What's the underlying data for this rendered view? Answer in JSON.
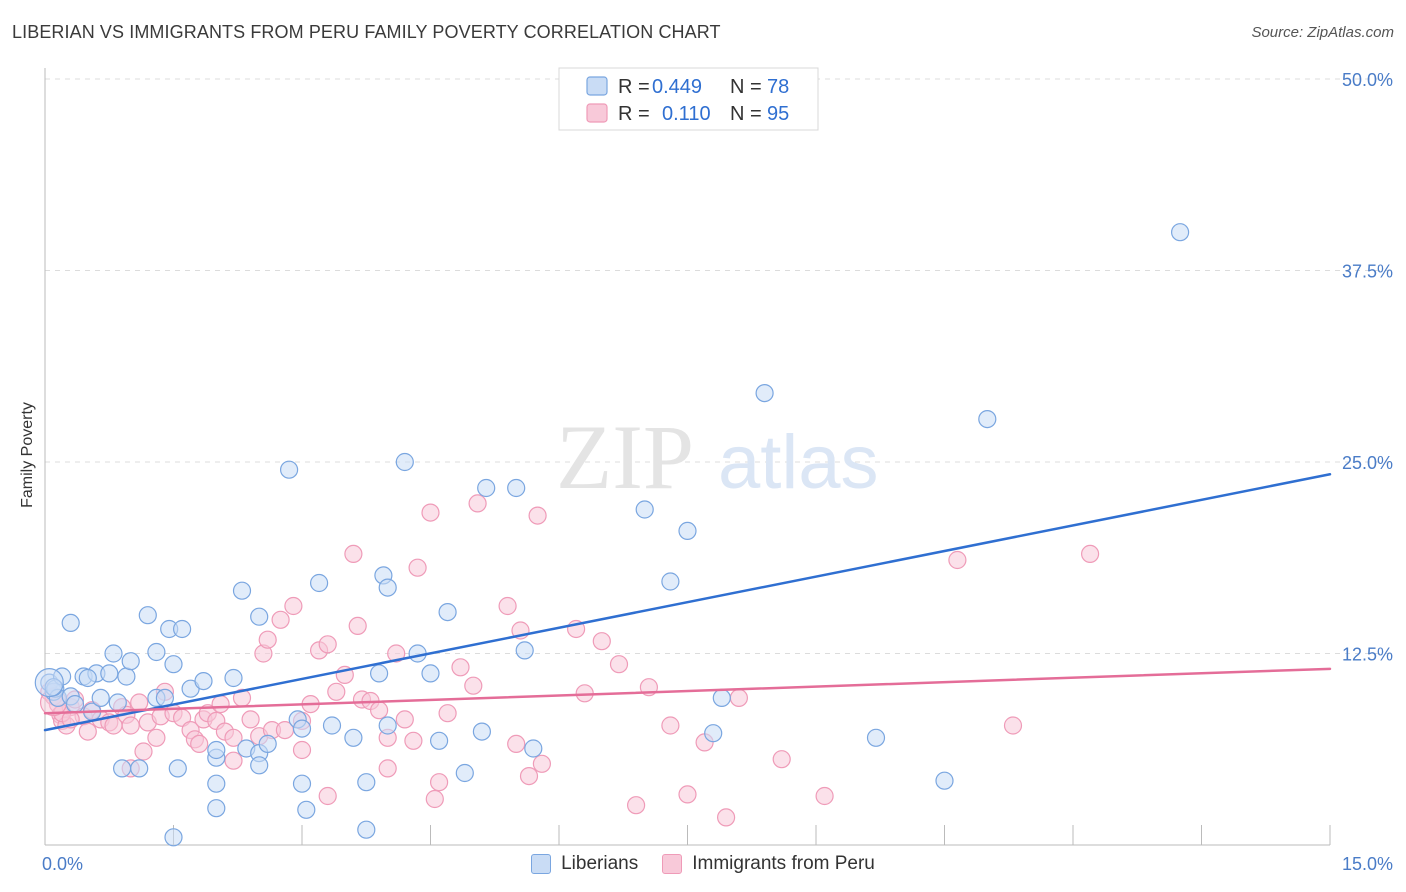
{
  "header": {
    "title": "LIBERIAN VS IMMIGRANTS FROM PERU FAMILY POVERTY CORRELATION CHART",
    "source": "Source: ZipAtlas.com"
  },
  "watermark": {
    "zip": "ZIP",
    "atlas": "atlas"
  },
  "legend": {
    "rows": [
      {
        "r_label": "R =",
        "r_value": "0.449",
        "n_label": "N =",
        "n_value": "78"
      },
      {
        "r_label": "R =",
        "r_value": "0.110",
        "n_label": "N =",
        "n_value": "95"
      }
    ]
  },
  "bottom_legend": {
    "series1": "Liberians",
    "series2": "Immigrants from Peru"
  },
  "chart_data": {
    "type": "scatter",
    "title": "LIBERIAN VS IMMIGRANTS FROM PERU FAMILY POVERTY CORRELATION CHART",
    "xlabel": "",
    "ylabel": "Family Poverty",
    "xlim": [
      0,
      15
    ],
    "ylim": [
      0,
      50
    ],
    "x_tick_labels": [
      "0.0%",
      "15.0%"
    ],
    "y_ticks": [
      12.5,
      25.0,
      37.5,
      50.0
    ],
    "y_tick_labels": [
      "12.5%",
      "25.0%",
      "37.5%",
      "50.0%"
    ],
    "grid": true,
    "series": [
      {
        "name": "Liberians",
        "color": "#7aa6e0",
        "fill": "#c9dcf5",
        "line_color": "#2f6fd1",
        "trend": {
          "x": [
            0,
            15
          ],
          "y": [
            7.5,
            24.2
          ]
        },
        "points": [
          [
            0.05,
            10.6
          ],
          [
            0.1,
            10.0
          ],
          [
            0.12,
            10.2
          ],
          [
            0.15,
            9.6
          ],
          [
            0.2,
            11.0
          ],
          [
            0.3,
            14.5
          ],
          [
            0.3,
            9.7
          ],
          [
            0.35,
            9.2
          ],
          [
            0.45,
            11.0
          ],
          [
            0.55,
            8.7
          ],
          [
            0.6,
            11.2
          ],
          [
            0.65,
            9.6
          ],
          [
            0.75,
            11.2
          ],
          [
            0.8,
            12.5
          ],
          [
            0.85,
            9.3
          ],
          [
            0.95,
            11.0
          ],
          [
            1.0,
            12.0
          ],
          [
            1.2,
            15.0
          ],
          [
            1.3,
            12.6
          ],
          [
            1.3,
            9.6
          ],
          [
            1.4,
            9.6
          ],
          [
            1.45,
            14.1
          ],
          [
            1.5,
            11.8
          ],
          [
            1.6,
            14.1
          ],
          [
            1.7,
            10.2
          ],
          [
            1.85,
            10.7
          ],
          [
            2.0,
            5.7
          ],
          [
            2.2,
            10.9
          ],
          [
            2.3,
            16.6
          ],
          [
            2.35,
            6.3
          ],
          [
            2.5,
            6.0
          ],
          [
            2.5,
            14.9
          ],
          [
            2.6,
            6.6
          ],
          [
            2.85,
            24.5
          ],
          [
            2.95,
            8.2
          ],
          [
            3.0,
            7.6
          ],
          [
            3.2,
            17.1
          ],
          [
            3.35,
            7.8
          ],
          [
            3.6,
            7.0
          ],
          [
            3.75,
            4.1
          ],
          [
            3.9,
            11.2
          ],
          [
            3.95,
            17.6
          ],
          [
            4.0,
            16.8
          ],
          [
            4.0,
            7.8
          ],
          [
            4.2,
            25.0
          ],
          [
            4.35,
            12.5
          ],
          [
            4.5,
            11.2
          ],
          [
            4.6,
            6.8
          ],
          [
            4.7,
            15.2
          ],
          [
            4.9,
            4.7
          ],
          [
            5.1,
            7.4
          ],
          [
            5.15,
            23.3
          ],
          [
            5.5,
            23.3
          ],
          [
            5.6,
            12.7
          ],
          [
            5.7,
            6.3
          ],
          [
            7.0,
            21.9
          ],
          [
            7.3,
            17.2
          ],
          [
            7.5,
            20.5
          ],
          [
            7.9,
            9.6
          ],
          [
            7.8,
            7.3
          ],
          [
            8.4,
            29.5
          ],
          [
            9.7,
            7.0
          ],
          [
            10.5,
            4.2
          ],
          [
            11.0,
            27.8
          ],
          [
            13.25,
            40.0
          ],
          [
            0.1,
            10.3
          ],
          [
            0.5,
            10.9
          ],
          [
            0.9,
            5.0
          ],
          [
            1.1,
            5.0
          ],
          [
            1.5,
            0.5
          ],
          [
            1.55,
            5.0
          ],
          [
            2.0,
            2.4
          ],
          [
            2.0,
            4.0
          ],
          [
            2.5,
            5.2
          ],
          [
            3.0,
            4.0
          ],
          [
            3.05,
            2.3
          ],
          [
            3.75,
            1.0
          ],
          [
            2.0,
            6.2
          ]
        ]
      },
      {
        "name": "Immigrants from Peru",
        "color": "#ef9bb8",
        "fill": "#f8c9d9",
        "line_color": "#e46d98",
        "trend": {
          "x": [
            0,
            15
          ],
          "y": [
            8.6,
            11.5
          ]
        },
        "points": [
          [
            0.05,
            10.0
          ],
          [
            0.1,
            9.7
          ],
          [
            0.15,
            9.2
          ],
          [
            0.18,
            8.5
          ],
          [
            0.2,
            8.1
          ],
          [
            0.25,
            7.8
          ],
          [
            0.3,
            9.0
          ],
          [
            0.35,
            9.5
          ],
          [
            0.45,
            8.4
          ],
          [
            0.5,
            7.4
          ],
          [
            0.55,
            8.8
          ],
          [
            0.65,
            8.2
          ],
          [
            0.75,
            8.0
          ],
          [
            0.8,
            7.8
          ],
          [
            0.9,
            9.0
          ],
          [
            0.95,
            8.5
          ],
          [
            1.0,
            7.8
          ],
          [
            1.1,
            9.3
          ],
          [
            1.15,
            6.1
          ],
          [
            1.2,
            8.0
          ],
          [
            1.3,
            7.0
          ],
          [
            1.35,
            8.4
          ],
          [
            1.4,
            10.0
          ],
          [
            1.5,
            8.6
          ],
          [
            1.6,
            8.3
          ],
          [
            1.7,
            7.5
          ],
          [
            1.75,
            6.9
          ],
          [
            1.8,
            6.6
          ],
          [
            1.85,
            8.2
          ],
          [
            1.9,
            8.6
          ],
          [
            2.0,
            8.1
          ],
          [
            2.05,
            9.2
          ],
          [
            2.1,
            7.4
          ],
          [
            2.2,
            7.0
          ],
          [
            2.3,
            9.6
          ],
          [
            2.4,
            8.2
          ],
          [
            2.5,
            7.1
          ],
          [
            2.55,
            12.5
          ],
          [
            2.6,
            13.4
          ],
          [
            2.65,
            7.5
          ],
          [
            2.75,
            14.7
          ],
          [
            2.8,
            7.5
          ],
          [
            2.9,
            15.6
          ],
          [
            3.0,
            8.1
          ],
          [
            3.0,
            6.2
          ],
          [
            3.1,
            9.2
          ],
          [
            3.2,
            12.7
          ],
          [
            3.3,
            13.1
          ],
          [
            3.4,
            10.0
          ],
          [
            3.5,
            11.1
          ],
          [
            3.6,
            19.0
          ],
          [
            3.65,
            14.3
          ],
          [
            3.7,
            9.5
          ],
          [
            3.8,
            9.4
          ],
          [
            3.9,
            8.8
          ],
          [
            4.0,
            7.0
          ],
          [
            4.1,
            12.5
          ],
          [
            4.2,
            8.2
          ],
          [
            4.3,
            6.8
          ],
          [
            4.35,
            18.1
          ],
          [
            4.5,
            21.7
          ],
          [
            4.55,
            3.0
          ],
          [
            4.6,
            4.1
          ],
          [
            4.7,
            8.6
          ],
          [
            4.85,
            11.6
          ],
          [
            5.0,
            10.4
          ],
          [
            5.05,
            22.3
          ],
          [
            5.4,
            15.6
          ],
          [
            5.5,
            6.6
          ],
          [
            5.55,
            14.0
          ],
          [
            5.65,
            4.5
          ],
          [
            5.75,
            21.5
          ],
          [
            5.8,
            5.3
          ],
          [
            6.2,
            14.1
          ],
          [
            6.3,
            9.9
          ],
          [
            6.5,
            13.3
          ],
          [
            6.7,
            11.8
          ],
          [
            6.9,
            2.6
          ],
          [
            7.05,
            10.3
          ],
          [
            7.3,
            7.8
          ],
          [
            7.5,
            3.3
          ],
          [
            7.7,
            6.7
          ],
          [
            7.95,
            1.8
          ],
          [
            8.1,
            9.6
          ],
          [
            8.6,
            5.6
          ],
          [
            9.1,
            3.2
          ],
          [
            10.65,
            18.6
          ],
          [
            11.3,
            7.8
          ],
          [
            12.2,
            19.0
          ],
          [
            0.2,
            8.6
          ],
          [
            0.3,
            8.2
          ],
          [
            1.0,
            5.0
          ],
          [
            2.2,
            5.5
          ],
          [
            3.3,
            3.2
          ],
          [
            4.0,
            5.0
          ]
        ]
      }
    ]
  }
}
